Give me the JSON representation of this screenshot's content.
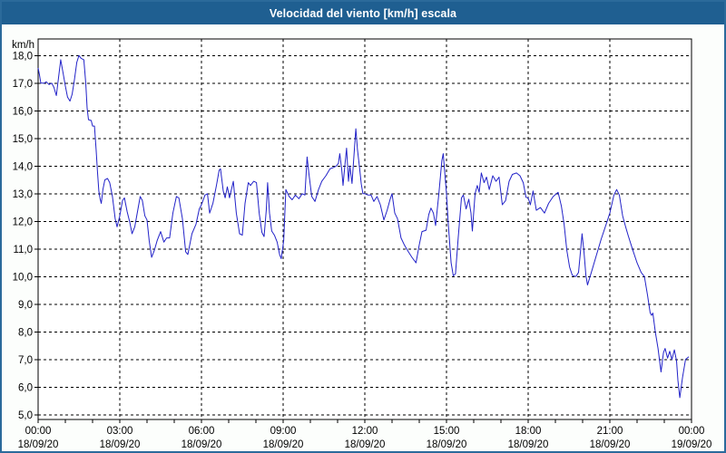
{
  "window": {
    "title": "Velocidad del viento [km/h] escala",
    "border_color": "#2B6A9B",
    "titlebar_bg": "#1F5F91",
    "titlebar_text_color": "#FFFFFF",
    "background": "#FCFEFC"
  },
  "chart_data": {
    "type": "line",
    "title": "Velocidad del viento [km/h] escala",
    "ylabel": "km/h",
    "xlabel": "",
    "ylim": [
      4.83,
      18.6
    ],
    "xlim_hours": [
      0,
      24
    ],
    "grid": "dashed-black",
    "legend": "none",
    "plot_background": "#FFFFFF",
    "minor_tick_interval_hours": 1,
    "y_ticks": [
      {
        "value": 18,
        "label": "18,0"
      },
      {
        "value": 17,
        "label": "17,0"
      },
      {
        "value": 16,
        "label": "16,0"
      },
      {
        "value": 15,
        "label": "15,0"
      },
      {
        "value": 14,
        "label": "14,0"
      },
      {
        "value": 13,
        "label": "13,0"
      },
      {
        "value": 12,
        "label": "12,0"
      },
      {
        "value": 11,
        "label": "11,0"
      },
      {
        "value": 10,
        "label": "10,0"
      },
      {
        "value": 9,
        "label": "9,0"
      },
      {
        "value": 8,
        "label": "8,0"
      },
      {
        "value": 7,
        "label": "7,0"
      },
      {
        "value": 6,
        "label": "6,0"
      },
      {
        "value": 5,
        "label": "5,0"
      }
    ],
    "x_ticks": [
      {
        "hour": 0,
        "time": "00:00",
        "date": "18/09/20"
      },
      {
        "hour": 3,
        "time": "03:00",
        "date": "18/09/20"
      },
      {
        "hour": 6,
        "time": "06:00",
        "date": "18/09/20"
      },
      {
        "hour": 9,
        "time": "09:00",
        "date": "18/09/20"
      },
      {
        "hour": 12,
        "time": "12:00",
        "date": "18/09/20"
      },
      {
        "hour": 15,
        "time": "15:00",
        "date": "18/09/20"
      },
      {
        "hour": 18,
        "time": "18:00",
        "date": "18/09/20"
      },
      {
        "hour": 21,
        "time": "21:00",
        "date": "18/09/20"
      },
      {
        "hour": 24,
        "time": "00:00",
        "date": "19/09/20"
      }
    ],
    "series": [
      {
        "name": "Velocidad del viento [km/h]",
        "color": "#2222C8",
        "points": [
          [
            0.0,
            17.55
          ],
          [
            0.05,
            17.3
          ],
          [
            0.1,
            17.0
          ],
          [
            0.22,
            17.0
          ],
          [
            0.3,
            17.05
          ],
          [
            0.4,
            16.95
          ],
          [
            0.5,
            17.0
          ],
          [
            0.58,
            16.85
          ],
          [
            0.67,
            16.55
          ],
          [
            0.75,
            17.2
          ],
          [
            0.83,
            17.85
          ],
          [
            0.92,
            17.35
          ],
          [
            1.0,
            16.9
          ],
          [
            1.08,
            16.5
          ],
          [
            1.17,
            16.35
          ],
          [
            1.25,
            16.6
          ],
          [
            1.33,
            17.1
          ],
          [
            1.42,
            17.75
          ],
          [
            1.5,
            18.0
          ],
          [
            1.58,
            17.9
          ],
          [
            1.68,
            17.85
          ],
          [
            1.75,
            17.0
          ],
          [
            1.8,
            16.1
          ],
          [
            1.85,
            15.68
          ],
          [
            1.95,
            15.65
          ],
          [
            2.0,
            15.45
          ],
          [
            2.07,
            15.45
          ],
          [
            2.13,
            14.6
          ],
          [
            2.18,
            13.8
          ],
          [
            2.23,
            13.1
          ],
          [
            2.28,
            12.8
          ],
          [
            2.32,
            12.65
          ],
          [
            2.38,
            13.15
          ],
          [
            2.45,
            13.5
          ],
          [
            2.55,
            13.55
          ],
          [
            2.63,
            13.4
          ],
          [
            2.73,
            12.9
          ],
          [
            2.83,
            12.1
          ],
          [
            2.9,
            11.8
          ],
          [
            3.0,
            12.2
          ],
          [
            3.1,
            12.75
          ],
          [
            3.17,
            12.85
          ],
          [
            3.27,
            12.35
          ],
          [
            3.37,
            11.95
          ],
          [
            3.45,
            11.55
          ],
          [
            3.55,
            11.8
          ],
          [
            3.65,
            12.35
          ],
          [
            3.75,
            12.9
          ],
          [
            3.83,
            12.75
          ],
          [
            3.92,
            12.2
          ],
          [
            4.0,
            12.05
          ],
          [
            4.08,
            11.3
          ],
          [
            4.17,
            10.7
          ],
          [
            4.27,
            10.95
          ],
          [
            4.37,
            11.3
          ],
          [
            4.5,
            11.63
          ],
          [
            4.62,
            11.25
          ],
          [
            4.72,
            11.4
          ],
          [
            4.83,
            11.4
          ],
          [
            4.95,
            12.3
          ],
          [
            5.08,
            12.9
          ],
          [
            5.17,
            12.85
          ],
          [
            5.3,
            12.1
          ],
          [
            5.42,
            10.9
          ],
          [
            5.5,
            10.8
          ],
          [
            5.65,
            11.55
          ],
          [
            5.8,
            11.9
          ],
          [
            5.92,
            12.45
          ],
          [
            6.0,
            12.6
          ],
          [
            6.13,
            12.95
          ],
          [
            6.22,
            13.0
          ],
          [
            6.3,
            12.3
          ],
          [
            6.42,
            12.65
          ],
          [
            6.55,
            13.3
          ],
          [
            6.65,
            13.85
          ],
          [
            6.7,
            13.9
          ],
          [
            6.8,
            13.1
          ],
          [
            6.87,
            12.85
          ],
          [
            6.95,
            13.25
          ],
          [
            7.03,
            12.85
          ],
          [
            7.17,
            13.45
          ],
          [
            7.28,
            12.3
          ],
          [
            7.4,
            11.55
          ],
          [
            7.5,
            11.5
          ],
          [
            7.6,
            12.65
          ],
          [
            7.72,
            13.4
          ],
          [
            7.8,
            13.3
          ],
          [
            7.92,
            13.45
          ],
          [
            8.02,
            13.4
          ],
          [
            8.12,
            12.3
          ],
          [
            8.22,
            11.6
          ],
          [
            8.3,
            11.45
          ],
          [
            8.38,
            12.4
          ],
          [
            8.43,
            13.4
          ],
          [
            8.5,
            12.3
          ],
          [
            8.58,
            11.65
          ],
          [
            8.68,
            11.5
          ],
          [
            8.78,
            11.25
          ],
          [
            8.87,
            10.8
          ],
          [
            8.93,
            10.65
          ],
          [
            9.02,
            11.3
          ],
          [
            9.1,
            13.15
          ],
          [
            9.22,
            12.9
          ],
          [
            9.33,
            12.78
          ],
          [
            9.45,
            12.95
          ],
          [
            9.58,
            12.82
          ],
          [
            9.7,
            13.0
          ],
          [
            9.8,
            12.95
          ],
          [
            9.88,
            14.33
          ],
          [
            9.95,
            13.7
          ],
          [
            10.05,
            12.9
          ],
          [
            10.17,
            12.72
          ],
          [
            10.3,
            13.15
          ],
          [
            10.42,
            13.45
          ],
          [
            10.57,
            13.65
          ],
          [
            10.72,
            13.9
          ],
          [
            10.85,
            13.95
          ],
          [
            10.95,
            14.0
          ],
          [
            11.03,
            14.1
          ],
          [
            11.08,
            14.45
          ],
          [
            11.15,
            13.9
          ],
          [
            11.2,
            13.3
          ],
          [
            11.28,
            14.15
          ],
          [
            11.33,
            14.65
          ],
          [
            11.4,
            13.45
          ],
          [
            11.45,
            14.0
          ],
          [
            11.53,
            13.37
          ],
          [
            11.67,
            15.35
          ],
          [
            11.73,
            14.6
          ],
          [
            11.8,
            14.0
          ],
          [
            11.87,
            13.35
          ],
          [
            11.93,
            13.0
          ],
          [
            12.0,
            13.0
          ],
          [
            12.12,
            12.95
          ],
          [
            12.23,
            12.95
          ],
          [
            12.33,
            12.72
          ],
          [
            12.45,
            12.9
          ],
          [
            12.57,
            12.6
          ],
          [
            12.7,
            12.05
          ],
          [
            12.82,
            12.4
          ],
          [
            12.93,
            12.8
          ],
          [
            13.0,
            13.0
          ],
          [
            13.1,
            12.3
          ],
          [
            13.2,
            12.1
          ],
          [
            13.33,
            11.4
          ],
          [
            13.45,
            11.15
          ],
          [
            13.6,
            10.9
          ],
          [
            13.73,
            10.7
          ],
          [
            13.88,
            10.5
          ],
          [
            14.0,
            11.15
          ],
          [
            14.1,
            11.63
          ],
          [
            14.25,
            11.68
          ],
          [
            14.35,
            12.25
          ],
          [
            14.43,
            12.48
          ],
          [
            14.52,
            12.3
          ],
          [
            14.6,
            11.85
          ],
          [
            14.72,
            13.0
          ],
          [
            14.83,
            14.2
          ],
          [
            14.88,
            14.45
          ],
          [
            15.0,
            13.0
          ],
          [
            15.07,
            11.85
          ],
          [
            15.17,
            10.5
          ],
          [
            15.25,
            10.03
          ],
          [
            15.33,
            10.1
          ],
          [
            15.43,
            11.4
          ],
          [
            15.55,
            12.85
          ],
          [
            15.62,
            12.95
          ],
          [
            15.72,
            12.45
          ],
          [
            15.82,
            12.8
          ],
          [
            15.9,
            12.3
          ],
          [
            15.95,
            11.65
          ],
          [
            16.05,
            13.0
          ],
          [
            16.13,
            13.3
          ],
          [
            16.2,
            13.05
          ],
          [
            16.28,
            13.75
          ],
          [
            16.38,
            13.4
          ],
          [
            16.47,
            13.6
          ],
          [
            16.57,
            13.15
          ],
          [
            16.7,
            13.65
          ],
          [
            16.82,
            13.45
          ],
          [
            16.93,
            13.6
          ],
          [
            17.05,
            12.6
          ],
          [
            17.17,
            12.75
          ],
          [
            17.3,
            13.45
          ],
          [
            17.42,
            13.7
          ],
          [
            17.57,
            13.75
          ],
          [
            17.7,
            13.65
          ],
          [
            17.82,
            13.4
          ],
          [
            17.92,
            12.87
          ],
          [
            18.0,
            12.85
          ],
          [
            18.08,
            12.6
          ],
          [
            18.18,
            13.1
          ],
          [
            18.3,
            12.4
          ],
          [
            18.45,
            12.5
          ],
          [
            18.6,
            12.3
          ],
          [
            18.75,
            12.65
          ],
          [
            18.92,
            12.9
          ],
          [
            19.1,
            13.05
          ],
          [
            19.22,
            12.55
          ],
          [
            19.32,
            11.9
          ],
          [
            19.42,
            10.95
          ],
          [
            19.52,
            10.35
          ],
          [
            19.62,
            10.05
          ],
          [
            19.75,
            10.0
          ],
          [
            19.85,
            10.15
          ],
          [
            19.93,
            11.0
          ],
          [
            19.98,
            11.55
          ],
          [
            20.05,
            10.9
          ],
          [
            20.12,
            10.05
          ],
          [
            20.18,
            9.7
          ],
          [
            20.32,
            10.15
          ],
          [
            20.5,
            10.75
          ],
          [
            20.68,
            11.35
          ],
          [
            20.85,
            11.85
          ],
          [
            21.0,
            12.3
          ],
          [
            21.15,
            12.95
          ],
          [
            21.25,
            13.15
          ],
          [
            21.35,
            12.95
          ],
          [
            21.47,
            12.2
          ],
          [
            21.58,
            11.8
          ],
          [
            21.67,
            11.5
          ],
          [
            21.83,
            11.0
          ],
          [
            22.0,
            10.5
          ],
          [
            22.15,
            10.15
          ],
          [
            22.27,
            10.0
          ],
          [
            22.38,
            9.35
          ],
          [
            22.48,
            8.7
          ],
          [
            22.53,
            8.6
          ],
          [
            22.58,
            8.68
          ],
          [
            22.67,
            8.0
          ],
          [
            22.77,
            7.4
          ],
          [
            22.88,
            6.55
          ],
          [
            22.97,
            7.25
          ],
          [
            23.03,
            7.4
          ],
          [
            23.12,
            7.05
          ],
          [
            23.2,
            7.3
          ],
          [
            23.28,
            7.0
          ],
          [
            23.37,
            7.35
          ],
          [
            23.45,
            6.95
          ],
          [
            23.5,
            6.25
          ],
          [
            23.57,
            5.62
          ],
          [
            23.67,
            6.35
          ],
          [
            23.78,
            7.0
          ],
          [
            23.9,
            7.1
          ]
        ]
      }
    ]
  }
}
